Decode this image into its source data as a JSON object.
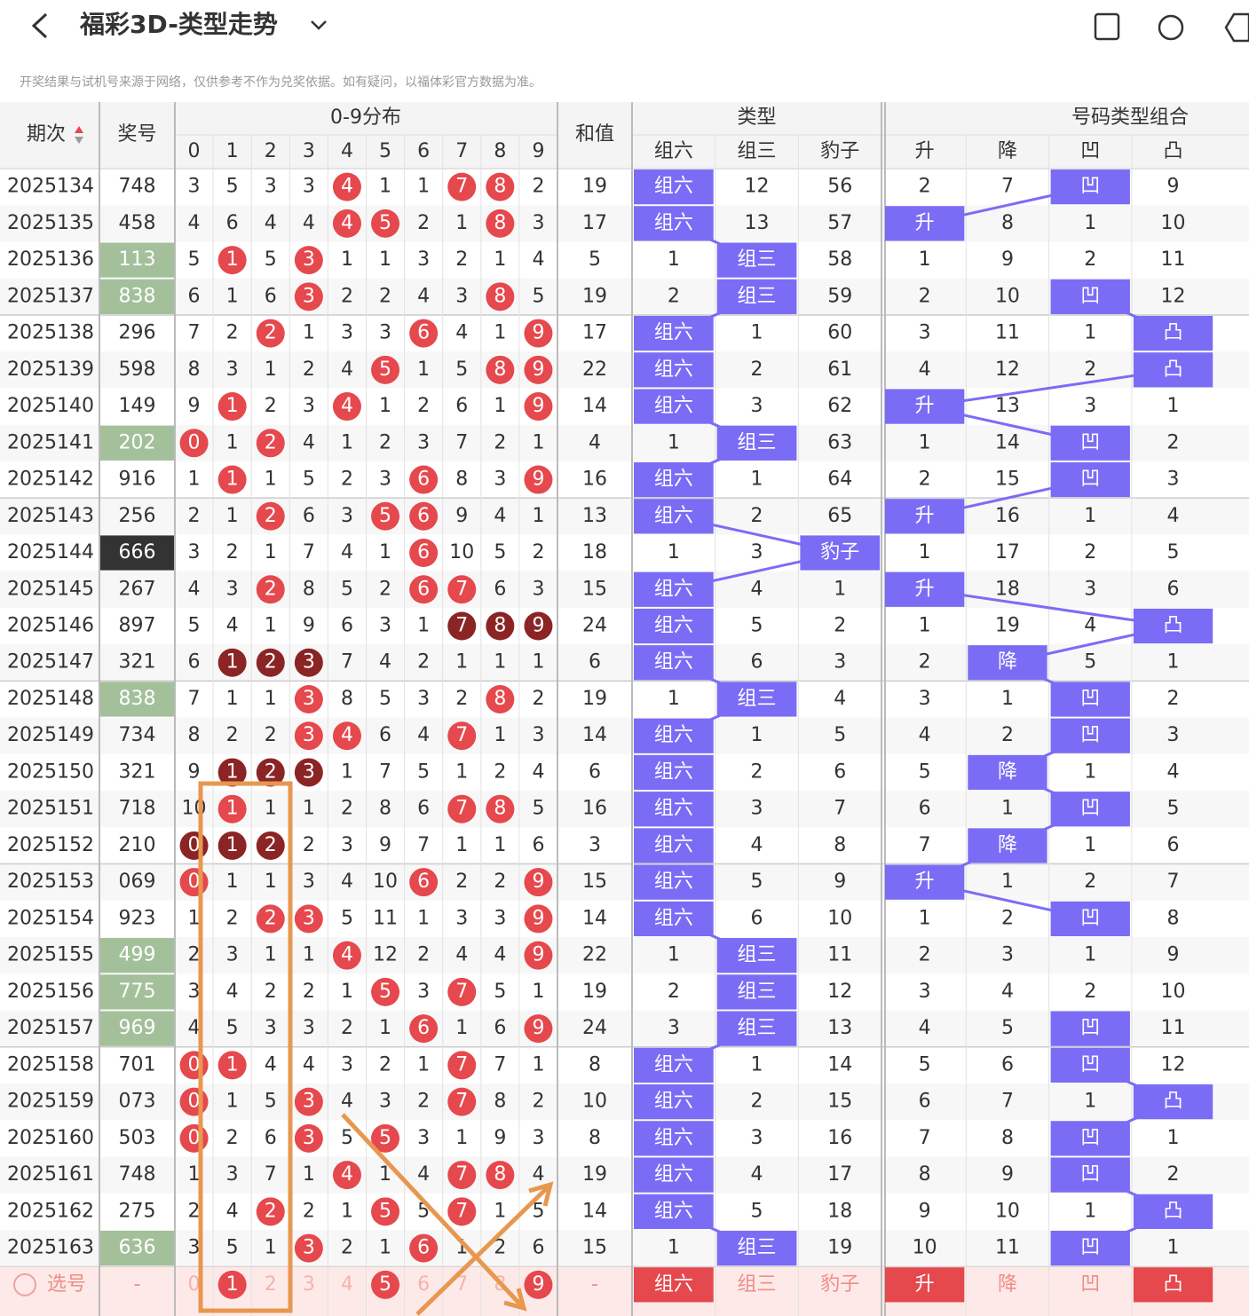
{
  "header": {
    "title": "福彩3D-类型走势",
    "disclaimer": "开奖结果与试机号来源于网络，仅供参考不作为兑奖依据。如有疑问，以福体彩官方数据为准。"
  },
  "table": {
    "headers": {
      "period": "期次",
      "number": "奖号",
      "dist": "0-9分布",
      "digits": [
        "0",
        "1",
        "2",
        "3",
        "4",
        "5",
        "6",
        "7",
        "8",
        "9"
      ],
      "sum": "和值",
      "type": "类型",
      "types": [
        "组六",
        "组三",
        "豹子"
      ],
      "combo": "号码类型组合",
      "combos": [
        "升",
        "降",
        "凹",
        "凸"
      ]
    },
    "rows": [
      {
        "period": "2025134",
        "number": "748",
        "dist": [
          3,
          5,
          3,
          3,
          4,
          1,
          1,
          7,
          8,
          2
        ],
        "sum": 19,
        "type": [
          "组六",
          12,
          56
        ],
        "combo": [
          2,
          7,
          "凹",
          9
        ]
      },
      {
        "period": "2025135",
        "number": "458",
        "dist": [
          4,
          6,
          4,
          4,
          4,
          5,
          2,
          1,
          8,
          3
        ],
        "sum": 17,
        "type": [
          "组六",
          13,
          57
        ],
        "combo": [
          "升",
          8,
          1,
          10
        ]
      },
      {
        "period": "2025136",
        "number": "113",
        "dist": [
          5,
          1,
          5,
          3,
          1,
          1,
          3,
          2,
          1,
          4
        ],
        "sum": 5,
        "type": [
          1,
          "组三",
          58
        ],
        "combo": [
          1,
          9,
          2,
          11
        ]
      },
      {
        "period": "2025137",
        "number": "838",
        "dist": [
          6,
          1,
          6,
          3,
          2,
          2,
          4,
          3,
          8,
          5
        ],
        "sum": 19,
        "type": [
          2,
          "组三",
          59
        ],
        "combo": [
          2,
          10,
          "凹",
          12
        ]
      },
      {
        "period": "2025138",
        "number": "296",
        "dist": [
          7,
          2,
          2,
          1,
          3,
          3,
          6,
          4,
          1,
          9
        ],
        "sum": 17,
        "type": [
          "组六",
          1,
          60
        ],
        "combo": [
          3,
          11,
          1,
          "凸"
        ]
      },
      {
        "period": "2025139",
        "number": "598",
        "dist": [
          8,
          3,
          1,
          2,
          4,
          5,
          1,
          5,
          8,
          9
        ],
        "sum": 22,
        "type": [
          "组六",
          2,
          61
        ],
        "combo": [
          4,
          12,
          2,
          "凸"
        ]
      },
      {
        "period": "2025140",
        "number": "149",
        "dist": [
          9,
          1,
          2,
          3,
          4,
          1,
          2,
          6,
          1,
          9
        ],
        "sum": 14,
        "type": [
          "组六",
          3,
          62
        ],
        "combo": [
          "升",
          13,
          3,
          1
        ]
      },
      {
        "period": "2025141",
        "number": "202",
        "dist": [
          0,
          1,
          2,
          4,
          1,
          2,
          3,
          7,
          2,
          1
        ],
        "sum": 4,
        "type": [
          1,
          "组三",
          63
        ],
        "combo": [
          1,
          14,
          "凹",
          2
        ]
      },
      {
        "period": "2025142",
        "number": "916",
        "dist": [
          1,
          1,
          1,
          5,
          2,
          3,
          6,
          8,
          3,
          9
        ],
        "sum": 16,
        "type": [
          "组六",
          1,
          64
        ],
        "combo": [
          2,
          15,
          "凹",
          3
        ]
      },
      {
        "period": "2025143",
        "number": "256",
        "dist": [
          2,
          1,
          2,
          6,
          3,
          5,
          6,
          9,
          4,
          1
        ],
        "sum": 13,
        "type": [
          "组六",
          2,
          65
        ],
        "combo": [
          "升",
          16,
          1,
          4
        ]
      },
      {
        "period": "2025144",
        "number": "666",
        "dist": [
          3,
          2,
          1,
          7,
          4,
          1,
          6,
          10,
          5,
          2
        ],
        "sum": 18,
        "type": [
          1,
          3,
          "豹子"
        ],
        "combo": [
          1,
          17,
          2,
          5
        ]
      },
      {
        "period": "2025145",
        "number": "267",
        "dist": [
          4,
          3,
          2,
          8,
          5,
          2,
          6,
          7,
          6,
          3
        ],
        "sum": 15,
        "type": [
          "组六",
          4,
          1
        ],
        "combo": [
          "升",
          18,
          3,
          6
        ]
      },
      {
        "period": "2025146",
        "number": "897",
        "dist": [
          5,
          4,
          1,
          9,
          6,
          3,
          1,
          7,
          8,
          9
        ],
        "sum": 24,
        "type": [
          "组六",
          5,
          2
        ],
        "combo": [
          1,
          19,
          4,
          "凸"
        ]
      },
      {
        "period": "2025147",
        "number": "321",
        "dist": [
          6,
          1,
          2,
          3,
          7,
          4,
          2,
          1,
          1,
          1
        ],
        "sum": 6,
        "type": [
          "组六",
          6,
          3
        ],
        "combo": [
          2,
          "降",
          5,
          1
        ]
      },
      {
        "period": "2025148",
        "number": "838",
        "dist": [
          7,
          1,
          1,
          3,
          8,
          5,
          3,
          2,
          8,
          2
        ],
        "sum": 19,
        "type": [
          1,
          "组三",
          4
        ],
        "combo": [
          3,
          1,
          "凹",
          2
        ]
      },
      {
        "period": "2025149",
        "number": "734",
        "dist": [
          8,
          2,
          2,
          3,
          4,
          6,
          4,
          7,
          1,
          3
        ],
        "sum": 14,
        "type": [
          "组六",
          1,
          5
        ],
        "combo": [
          4,
          2,
          "凹",
          3
        ]
      },
      {
        "period": "2025150",
        "number": "321",
        "dist": [
          9,
          1,
          2,
          3,
          1,
          7,
          5,
          1,
          2,
          4
        ],
        "sum": 6,
        "type": [
          "组六",
          2,
          6
        ],
        "combo": [
          5,
          "降",
          1,
          4
        ]
      },
      {
        "period": "2025151",
        "number": "718",
        "dist": [
          10,
          1,
          1,
          1,
          2,
          8,
          6,
          7,
          8,
          5
        ],
        "sum": 16,
        "type": [
          "组六",
          3,
          7
        ],
        "combo": [
          6,
          1,
          "凹",
          5
        ]
      },
      {
        "period": "2025152",
        "number": "210",
        "dist": [
          0,
          1,
          2,
          2,
          3,
          9,
          7,
          1,
          1,
          6
        ],
        "sum": 3,
        "type": [
          "组六",
          4,
          8
        ],
        "combo": [
          7,
          "降",
          1,
          6
        ]
      },
      {
        "period": "2025153",
        "number": "069",
        "dist": [
          0,
          1,
          1,
          3,
          4,
          10,
          6,
          2,
          2,
          9
        ],
        "sum": 15,
        "type": [
          "组六",
          5,
          9
        ],
        "combo": [
          "升",
          1,
          2,
          7
        ]
      },
      {
        "period": "2025154",
        "number": "923",
        "dist": [
          1,
          2,
          2,
          3,
          5,
          11,
          1,
          3,
          3,
          9
        ],
        "sum": 14,
        "type": [
          "组六",
          6,
          10
        ],
        "combo": [
          1,
          2,
          "凹",
          8
        ]
      },
      {
        "period": "2025155",
        "number": "499",
        "dist": [
          2,
          3,
          1,
          1,
          4,
          12,
          2,
          4,
          4,
          9
        ],
        "sum": 22,
        "type": [
          1,
          "组三",
          11
        ],
        "combo": [
          2,
          3,
          1,
          9
        ]
      },
      {
        "period": "2025156",
        "number": "775",
        "dist": [
          3,
          4,
          2,
          2,
          1,
          5,
          3,
          7,
          5,
          1
        ],
        "sum": 19,
        "type": [
          2,
          "组三",
          12
        ],
        "combo": [
          3,
          4,
          2,
          10
        ]
      },
      {
        "period": "2025157",
        "number": "969",
        "dist": [
          4,
          5,
          3,
          3,
          2,
          1,
          6,
          1,
          6,
          9
        ],
        "sum": 24,
        "type": [
          3,
          "组三",
          13
        ],
        "combo": [
          4,
          5,
          "凹",
          11
        ]
      },
      {
        "period": "2025158",
        "number": "701",
        "dist": [
          0,
          1,
          4,
          4,
          3,
          2,
          1,
          7,
          7,
          1
        ],
        "sum": 8,
        "type": [
          "组六",
          1,
          14
        ],
        "combo": [
          5,
          6,
          "凹",
          12
        ]
      },
      {
        "period": "2025159",
        "number": "073",
        "dist": [
          0,
          1,
          5,
          3,
          4,
          3,
          2,
          7,
          8,
          2
        ],
        "sum": 10,
        "type": [
          "组六",
          2,
          15
        ],
        "combo": [
          6,
          7,
          1,
          "凸"
        ]
      },
      {
        "period": "2025160",
        "number": "503",
        "dist": [
          0,
          2,
          6,
          3,
          5,
          5,
          3,
          1,
          9,
          3
        ],
        "sum": 8,
        "type": [
          "组六",
          3,
          16
        ],
        "combo": [
          7,
          8,
          "凹",
          1
        ]
      },
      {
        "period": "2025161",
        "number": "748",
        "dist": [
          1,
          3,
          7,
          1,
          4,
          1,
          4,
          7,
          8,
          4
        ],
        "sum": 19,
        "type": [
          "组六",
          4,
          17
        ],
        "combo": [
          8,
          9,
          "凹",
          2
        ]
      },
      {
        "period": "2025162",
        "number": "275",
        "dist": [
          2,
          4,
          2,
          2,
          1,
          5,
          5,
          7,
          1,
          5
        ],
        "sum": 14,
        "type": [
          "组六",
          5,
          18
        ],
        "combo": [
          9,
          10,
          1,
          "凸"
        ]
      },
      {
        "period": "2025163",
        "number": "636",
        "dist": [
          3,
          5,
          1,
          3,
          2,
          1,
          6,
          1,
          2,
          6
        ],
        "sum": 15,
        "type": [
          1,
          "组三",
          19
        ],
        "combo": [
          10,
          11,
          "凹",
          1
        ]
      }
    ],
    "pick_row": {
      "label": "选号",
      "number": "-",
      "digits": [
        "0",
        "1",
        "2",
        "3",
        "4",
        "5",
        "6",
        "7",
        "8",
        "9"
      ],
      "sum": "-",
      "types": [
        "组六",
        "组三",
        "豹子"
      ],
      "combos": [
        "升",
        "降",
        "凹",
        "凸"
      ]
    }
  }
}
